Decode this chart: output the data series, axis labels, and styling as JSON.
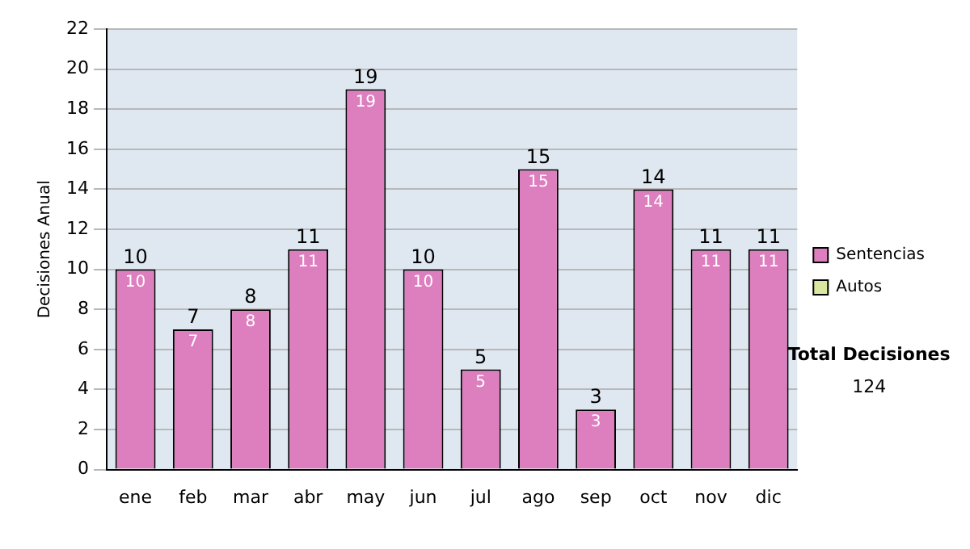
{
  "chart_data": {
    "type": "bar",
    "ylabel": "Decisiones Anual",
    "categories": [
      "ene",
      "feb",
      "mar",
      "abr",
      "may",
      "jun",
      "jul",
      "ago",
      "sep",
      "oct",
      "nov",
      "dic"
    ],
    "series": [
      {
        "name": "Sentencias",
        "color": "#dd7fbe",
        "values": [
          10,
          7,
          8,
          11,
          19,
          10,
          5,
          15,
          3,
          14,
          11,
          11
        ],
        "value_labels": [
          "10",
          "7",
          "8",
          "11",
          "19",
          "10",
          "5",
          "15",
          "3",
          "14",
          "11",
          "11"
        ]
      },
      {
        "name": "Autos",
        "color": "#d9e8a0",
        "values": [
          0,
          0,
          0,
          0,
          0,
          0,
          0,
          0,
          0,
          0,
          0,
          0
        ]
      }
    ],
    "stacked": true,
    "totals": [
      "10",
      "7",
      "8",
      "11",
      "19",
      "10",
      "5",
      "15",
      "3",
      "14",
      "11",
      "11"
    ],
    "ylim": [
      0,
      22
    ],
    "yticks": [
      0,
      2,
      4,
      6,
      8,
      10,
      12,
      14,
      16,
      18,
      20,
      22
    ],
    "grid": "y",
    "legend": "right",
    "annotations": [
      "Total Decisiones",
      "124"
    ]
  }
}
